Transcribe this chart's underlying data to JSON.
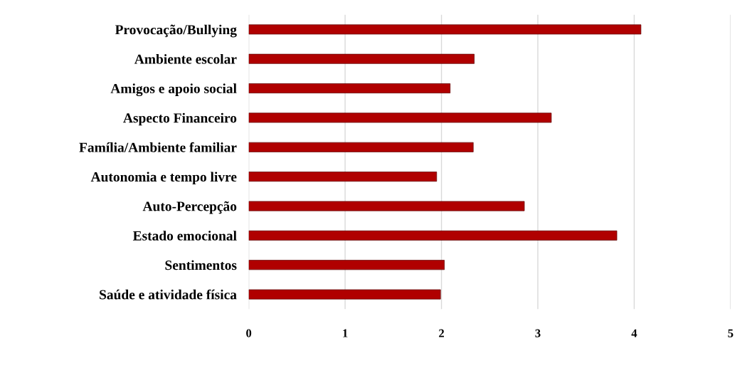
{
  "chart_data": {
    "type": "bar",
    "orientation": "horizontal",
    "categories": [
      "Provocação/Bullying",
      "Ambiente escolar",
      "Amigos e apoio social",
      "Aspecto Financeiro",
      "Família/Ambiente familiar",
      "Autonomia e tempo livre",
      "Auto-Percepção",
      "Estado emocional",
      "Sentimentos",
      "Saúde e atividade física"
    ],
    "values": [
      4.07,
      2.34,
      2.09,
      3.14,
      2.33,
      1.95,
      2.86,
      3.82,
      2.03,
      1.99
    ],
    "color": "#b00000",
    "xlim": [
      0,
      5
    ],
    "xticks": [
      0,
      1,
      2,
      3,
      4,
      5
    ],
    "grid": "x"
  }
}
